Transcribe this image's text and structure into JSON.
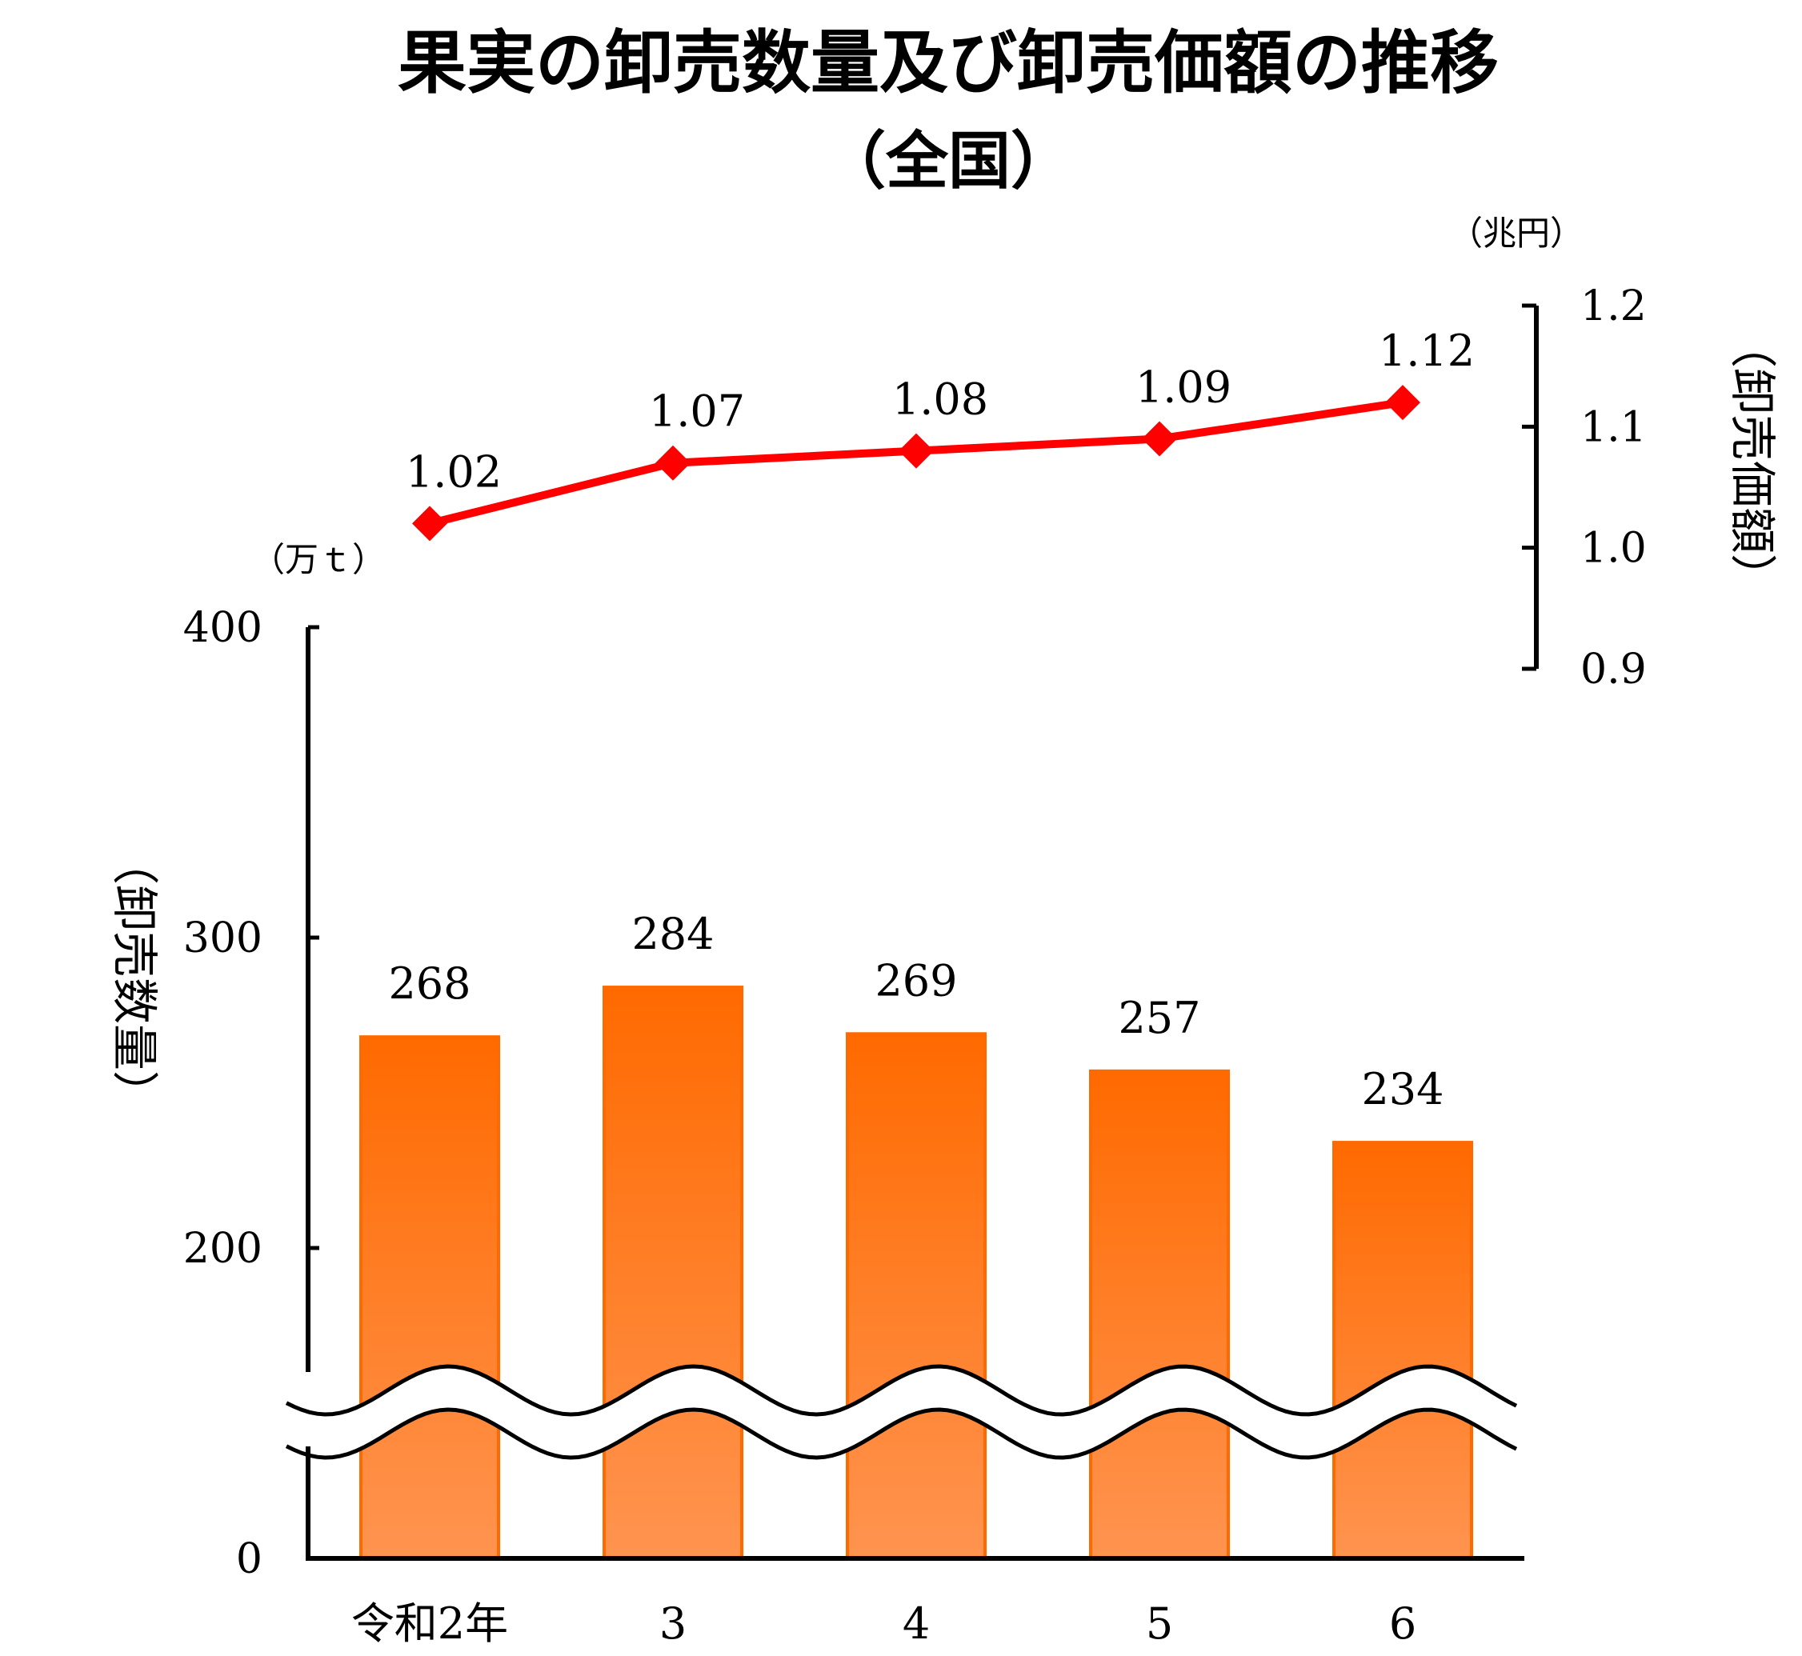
{
  "title": "果実の卸売数量及び卸売価額の推移",
  "subtitle": "（全国）",
  "chart_data": {
    "type": "bar",
    "title": "果実の卸売数量及び卸売価額の推移",
    "subtitle": "（全国）",
    "categories": [
      "令和2年",
      "3",
      "4",
      "5",
      "6"
    ],
    "series": [
      {
        "name": "卸売数量",
        "type": "bar",
        "axis": "left",
        "values": [
          268,
          284,
          269,
          257,
          234
        ],
        "labels": [
          "268",
          "284",
          "269",
          "257",
          "234"
        ],
        "color": "#ff6a00"
      },
      {
        "name": "卸売価額",
        "type": "line",
        "axis": "right",
        "values": [
          1.02,
          1.07,
          1.08,
          1.09,
          1.12
        ],
        "labels": [
          "1.02",
          "1.07",
          "1.08",
          "1.09",
          "1.12"
        ],
        "color": "#ff0000"
      }
    ],
    "left_axis": {
      "label": "（卸売数量）",
      "unit": "（万ｔ）",
      "ticks": [
        0,
        200,
        300,
        400
      ],
      "tick_labels": [
        "0",
        "200",
        "300",
        "400"
      ],
      "ylim": [
        0,
        400
      ],
      "axis_break": true
    },
    "right_axis": {
      "label": "（卸売価額）",
      "unit": "（兆円）",
      "ticks": [
        0.9,
        1.0,
        1.1,
        1.2
      ],
      "tick_labels": [
        "0.9",
        "1.0",
        "1.1",
        "1.2"
      ],
      "ylim": [
        0.9,
        1.2
      ]
    },
    "grid": false,
    "legend": "none"
  }
}
